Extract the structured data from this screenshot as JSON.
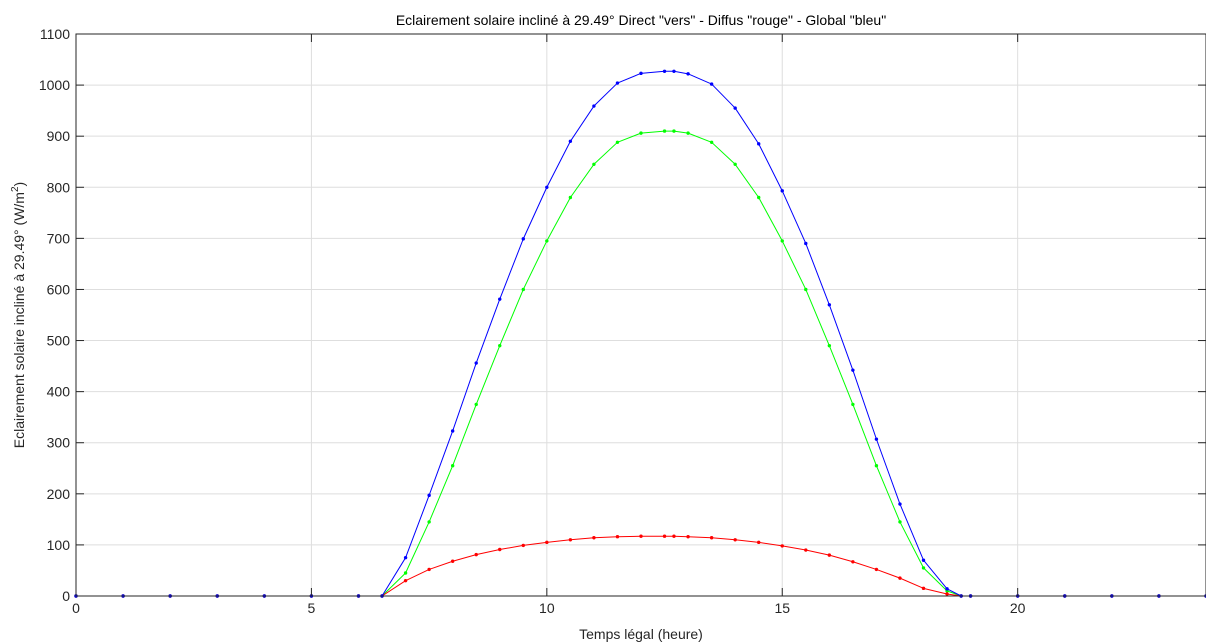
{
  "chart_data": {
    "type": "line",
    "title": "Eclairement solaire incliné à 29.49°   Direct \"vers\" - Diffus \"rouge\" - Global \"bleu\"",
    "xlabel": "Temps légal (heure)",
    "ylabel": "Eclairement solaire incliné à 29.49° (W/m",
    "ylabel_sup": "2",
    "ylabel_end": ")",
    "xlim": [
      0,
      24
    ],
    "ylim": [
      0,
      1100
    ],
    "xticks": [
      "0",
      "5",
      "10",
      "15",
      "20"
    ],
    "xtick_values": [
      0,
      5,
      10,
      15,
      20
    ],
    "yticks": [
      "0",
      "100",
      "200",
      "300",
      "400",
      "500",
      "600",
      "700",
      "800",
      "900",
      "1000",
      "1100"
    ],
    "ytick_values": [
      0,
      100,
      200,
      300,
      400,
      500,
      600,
      700,
      800,
      900,
      1000,
      1100
    ],
    "grid": true,
    "marker": "dot",
    "x": [
      0,
      1,
      2,
      3,
      4,
      5,
      6,
      6.5,
      7,
      7.5,
      8,
      8.5,
      9,
      9.5,
      10,
      10.5,
      11,
      11.5,
      12,
      12.5,
      12.7,
      13,
      13.5,
      14,
      14.5,
      15,
      15.5,
      16,
      16.5,
      17,
      17.5,
      18,
      18.5,
      18.8,
      19,
      20,
      21,
      22,
      23,
      24
    ],
    "series": [
      {
        "color": "#00ff00",
        "values": [
          0,
          0,
          0,
          0,
          0,
          0,
          0,
          0,
          45,
          145,
          255,
          375,
          490,
          600,
          695,
          780,
          845,
          888,
          906,
          910,
          910,
          906,
          888,
          845,
          780,
          695,
          600,
          490,
          375,
          255,
          145,
          55,
          10,
          0,
          0,
          0,
          0,
          0,
          0,
          0
        ]
      },
      {
        "color": "#ff0000",
        "values": [
          0,
          0,
          0,
          0,
          0,
          0,
          0,
          0,
          30,
          52,
          68,
          81,
          91,
          99,
          105,
          110,
          114,
          116,
          117,
          117,
          117,
          116,
          114,
          110,
          105,
          98,
          90,
          80,
          67,
          52,
          35,
          15,
          4,
          0,
          0,
          0,
          0,
          0,
          0,
          0
        ]
      },
      {
        "color": "#0000ff",
        "values": [
          0,
          0,
          0,
          0,
          0,
          0,
          0,
          0,
          75,
          197,
          323,
          456,
          581,
          699,
          800,
          890,
          959,
          1004,
          1023,
          1027,
          1027,
          1022,
          1002,
          955,
          885,
          793,
          690,
          570,
          442,
          307,
          180,
          70,
          14,
          0,
          0,
          0,
          0,
          0,
          0,
          0
        ]
      }
    ]
  }
}
